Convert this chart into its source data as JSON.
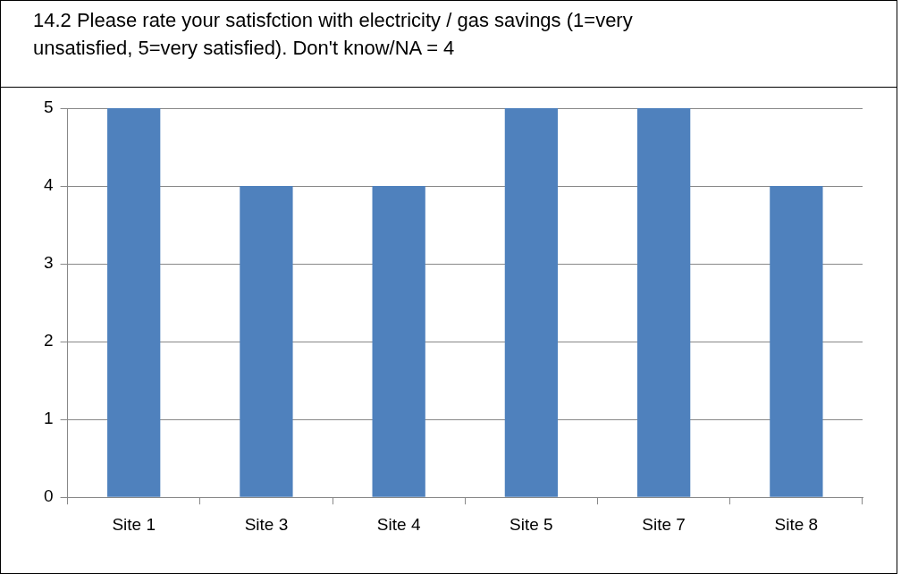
{
  "chart_data": {
    "type": "bar",
    "title": "14.2 Please rate your satisfction with electricity / gas savings (1=very unsatisfied, 5=very satisfied). Don't know/NA = 4",
    "categories": [
      "Site 1",
      "Site 3",
      "Site 4",
      "Site 5",
      "Site 7",
      "Site 8"
    ],
    "values": [
      5,
      4,
      4,
      5,
      5,
      4
    ],
    "color": "#4f81bd",
    "ylim": [
      0,
      5
    ],
    "yticks": [
      0,
      1,
      2,
      3,
      4,
      5
    ],
    "grid": "y",
    "legend": false
  }
}
